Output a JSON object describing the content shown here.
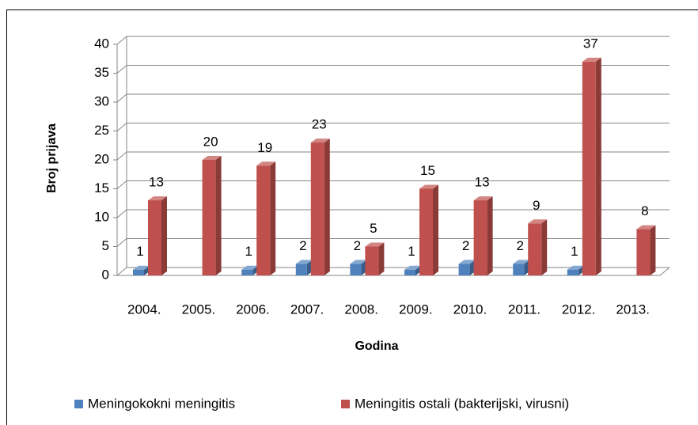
{
  "chart_data": {
    "type": "bar3d",
    "y_axis_label": "Broj prijava",
    "x_axis_label": "Godina",
    "categories": [
      "2004.",
      "2005.",
      "2006.",
      "2007.",
      "2008.",
      "2009.",
      "2010.",
      "2011.",
      "2012.",
      "2013."
    ],
    "series": [
      {
        "name": "Meningokokni meningitis",
        "color": "#4f81bd",
        "values": [
          1,
          null,
          1,
          2,
          2,
          1,
          2,
          2,
          1,
          null
        ]
      },
      {
        "name": "Meningitis ostali (bakterijski, virusni)",
        "color": "#c0504d",
        "values": [
          13,
          20,
          19,
          23,
          5,
          15,
          13,
          9,
          37,
          8
        ]
      }
    ],
    "ylim": [
      0,
      40
    ],
    "yticks": [
      0,
      5,
      10,
      15,
      20,
      25,
      30,
      35,
      40
    ],
    "grid": true,
    "legend": "bottom"
  }
}
